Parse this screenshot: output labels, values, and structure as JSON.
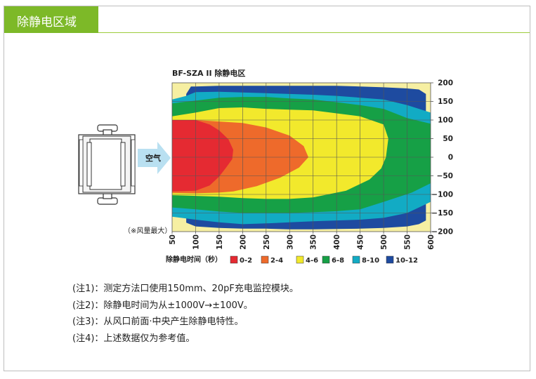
{
  "header": {
    "title": "除静电区域"
  },
  "device": {
    "air_label": "空气",
    "note": "（※风量最大）"
  },
  "chart_data": {
    "type": "heatmap",
    "title": "BF-SZA II 除静电区",
    "xlabel": "除静电时间（秒）",
    "x_ticks": [
      "50",
      "100",
      "150",
      "200",
      "250",
      "300",
      "350",
      "400",
      "450",
      "500",
      "550",
      "600"
    ],
    "y_ticks": [
      "200",
      "150",
      "100",
      "50",
      "0",
      "−50",
      "−100",
      "−150",
      "−200"
    ],
    "xlim": [
      50,
      600
    ],
    "ylim": [
      -200,
      200
    ],
    "grid": true,
    "legend_position": "bottom",
    "legend": [
      {
        "label": "0-2",
        "color": "#e52a32"
      },
      {
        "label": "2-4",
        "color": "#ee6a2b"
      },
      {
        "label": "4-6",
        "color": "#f2e92c"
      },
      {
        "label": "6-8",
        "color": "#16a046"
      },
      {
        "label": "8-10",
        "color": "#12abc4"
      },
      {
        "label": "10-12",
        "color": "#1e4ba0"
      }
    ],
    "background_color": "#f6efa2",
    "zones": [
      {
        "range": "10-12",
        "upper": [
          [
            90,
            190
          ],
          [
            100,
            190
          ],
          [
            150,
            192
          ],
          [
            200,
            192
          ],
          [
            250,
            192
          ],
          [
            300,
            192
          ],
          [
            350,
            192
          ],
          [
            400,
            192
          ],
          [
            450,
            190
          ],
          [
            500,
            188
          ],
          [
            550,
            185
          ],
          [
            575,
            182
          ],
          [
            590,
            170
          ],
          [
            590,
            -170
          ],
          [
            575,
            -180
          ],
          [
            550,
            -186
          ],
          [
            500,
            -190
          ],
          [
            450,
            -192
          ],
          [
            400,
            -193
          ],
          [
            350,
            -194
          ],
          [
            300,
            -194
          ],
          [
            250,
            -192
          ],
          [
            200,
            -192
          ],
          [
            150,
            -190
          ],
          [
            100,
            -186
          ],
          [
            80,
            -176
          ],
          [
            80,
            -150
          ],
          [
            80,
            170
          ]
        ]
      },
      {
        "range": "8-10",
        "polygon": [
          [
            50,
            155
          ],
          [
            80,
            165
          ],
          [
            100,
            175
          ],
          [
            150,
            176
          ],
          [
            200,
            174
          ],
          [
            250,
            172
          ],
          [
            300,
            170
          ],
          [
            350,
            168
          ],
          [
            400,
            165
          ],
          [
            450,
            160
          ],
          [
            500,
            155
          ],
          [
            550,
            140
          ],
          [
            600,
            120
          ],
          [
            600,
            -120
          ],
          [
            575,
            -135
          ],
          [
            550,
            -150
          ],
          [
            500,
            -163
          ],
          [
            450,
            -168
          ],
          [
            400,
            -170
          ],
          [
            350,
            -172
          ],
          [
            300,
            -175
          ],
          [
            250,
            -178
          ],
          [
            200,
            -180
          ],
          [
            150,
            -175
          ],
          [
            100,
            -168
          ],
          [
            50,
            -160
          ]
        ]
      },
      {
        "range": "6-8",
        "polygon": [
          [
            50,
            145
          ],
          [
            100,
            152
          ],
          [
            150,
            160
          ],
          [
            200,
            162
          ],
          [
            250,
            162
          ],
          [
            300,
            158
          ],
          [
            350,
            155
          ],
          [
            400,
            148
          ],
          [
            450,
            140
          ],
          [
            500,
            130
          ],
          [
            550,
            105
          ],
          [
            600,
            90
          ],
          [
            600,
            -70
          ],
          [
            560,
            -95
          ],
          [
            500,
            -120
          ],
          [
            450,
            -140
          ],
          [
            400,
            -145
          ],
          [
            350,
            -148
          ],
          [
            300,
            -150
          ],
          [
            250,
            -150
          ],
          [
            200,
            -150
          ],
          [
            150,
            -146
          ],
          [
            100,
            -140
          ],
          [
            50,
            -135
          ]
        ]
      },
      {
        "range": "4-6",
        "polygon": [
          [
            50,
            110
          ],
          [
            100,
            120
          ],
          [
            150,
            132
          ],
          [
            200,
            134
          ],
          [
            250,
            130
          ],
          [
            300,
            128
          ],
          [
            350,
            126
          ],
          [
            400,
            118
          ],
          [
            450,
            110
          ],
          [
            500,
            88
          ],
          [
            510,
            50
          ],
          [
            505,
            0
          ],
          [
            495,
            -30
          ],
          [
            470,
            -60
          ],
          [
            420,
            -90
          ],
          [
            350,
            -108
          ],
          [
            300,
            -112
          ],
          [
            250,
            -112
          ],
          [
            200,
            -110
          ],
          [
            150,
            -106
          ],
          [
            100,
            -104
          ],
          [
            50,
            -102
          ]
        ]
      },
      {
        "range": "2-4",
        "polygon": [
          [
            50,
            100
          ],
          [
            100,
            100
          ],
          [
            150,
            96
          ],
          [
            200,
            92
          ],
          [
            250,
            80
          ],
          [
            300,
            58
          ],
          [
            330,
            30
          ],
          [
            340,
            0
          ],
          [
            320,
            -28
          ],
          [
            280,
            -55
          ],
          [
            230,
            -78
          ],
          [
            180,
            -92
          ],
          [
            150,
            -95
          ],
          [
            100,
            -97
          ],
          [
            50,
            -96
          ]
        ]
      },
      {
        "range": "0-2",
        "polygon": [
          [
            50,
            100
          ],
          [
            100,
            100
          ],
          [
            130,
            88
          ],
          [
            150,
            72
          ],
          [
            170,
            48
          ],
          [
            180,
            20
          ],
          [
            178,
            -5
          ],
          [
            165,
            -28
          ],
          [
            150,
            -52
          ],
          [
            130,
            -76
          ],
          [
            100,
            -90
          ],
          [
            50,
            -92
          ]
        ]
      }
    ]
  },
  "notes": [
    "(注1)：测定方法口使用150mm、20pF充电监控模块。",
    "(注2)：除静电时间为从±1000V→±100V。",
    "(注3)：从风口前面·中央产生除静电特性。",
    "(注4)：上述数据仅为参考值。"
  ]
}
